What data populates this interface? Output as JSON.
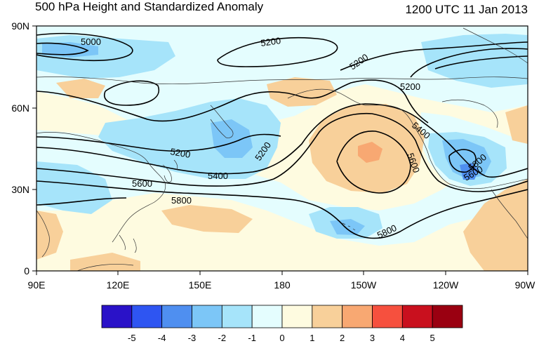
{
  "title": {
    "left": "500 hPa Height and Standardized Anomaly",
    "right": "1200 UTC 11 Jan 2013"
  },
  "axes": {
    "lat_labels": [
      "90N",
      "60N",
      "30N",
      "0"
    ],
    "lon_labels": [
      "90E",
      "120E",
      "150E",
      "180",
      "150W",
      "120W",
      "90W"
    ]
  },
  "contour_labels": [
    "5000",
    "5200",
    "5200",
    "5200",
    "5200",
    "5200",
    "5400",
    "5400",
    "5600",
    "5600",
    "5600",
    "5800",
    "5800",
    "5800"
  ],
  "colorbar": {
    "labels": [
      "-5",
      "-4",
      "-3",
      "-2",
      "-1",
      "0",
      "1",
      "2",
      "3",
      "4",
      "5"
    ],
    "colors": [
      "#2a12c8",
      "#2e55f2",
      "#4f8ff0",
      "#7cc6f7",
      "#a6e4fa",
      "#e4fdfe",
      "#fefbe0",
      "#f8d09a",
      "#f8a872",
      "#f6503e",
      "#c9101e",
      "#9a0011"
    ]
  }
}
